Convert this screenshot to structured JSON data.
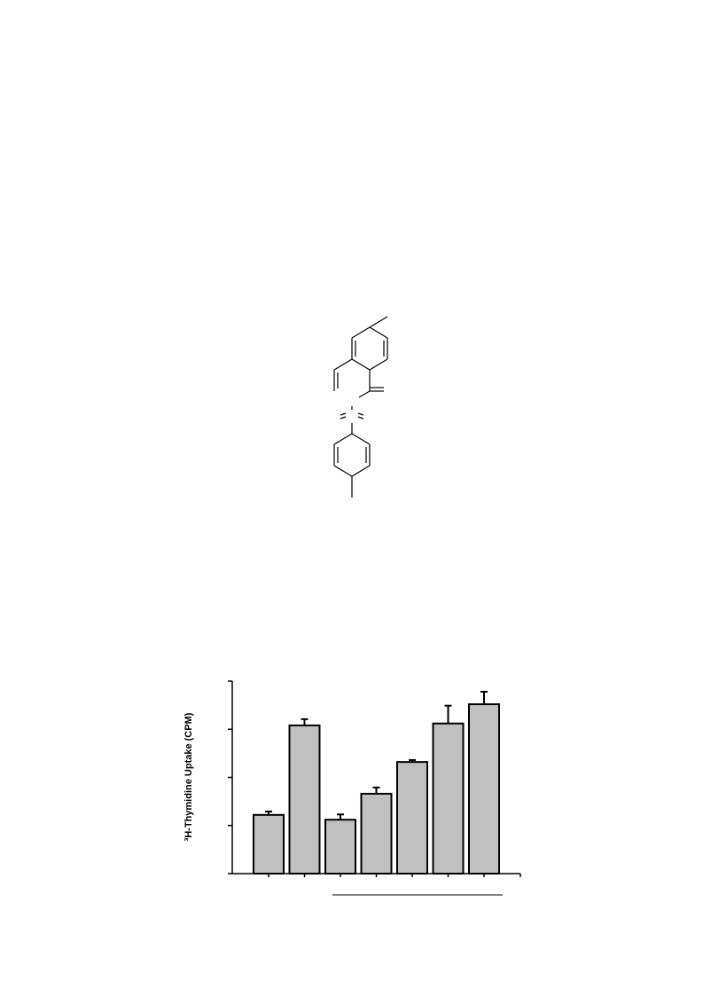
{
  "chart_data": {
    "type": "bar",
    "y_label": "³H-Thymidine Uptake (CPM)",
    "categories": [
      null,
      null,
      null,
      null,
      null,
      null,
      null
    ],
    "values": [
      1.22,
      3.08,
      1.12,
      1.66,
      2.32,
      3.12,
      3.52
    ],
    "errors": [
      0.07,
      0.13,
      0.11,
      0.13,
      0.04,
      0.37,
      0.26
    ],
    "color": "#c0c0c0",
    "ylim": [
      0,
      4
    ],
    "yticks": [
      0,
      1,
      2,
      3,
      4
    ],
    "grid": false
  }
}
